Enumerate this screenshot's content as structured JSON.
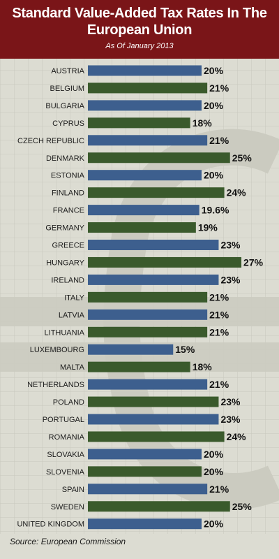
{
  "header": {
    "title": "Standard Value-Added Tax Rates In The European Union",
    "subtitle": "As Of January 2013"
  },
  "footer": {
    "source": "Source: European Commission"
  },
  "colors": {
    "header_bg": "#7a1518",
    "bar_blue": "#3d5f8e",
    "bar_green": "#3a5a2c",
    "background": "#dcdcd2"
  },
  "chart_data": {
    "type": "bar",
    "orientation": "horizontal",
    "title": "Standard Value-Added Tax Rates In The European Union",
    "subtitle": "As Of January 2013",
    "categories": [
      "AUSTRIA",
      "BELGIUM",
      "BULGARIA",
      "CYPRUS",
      "CZECH REPUBLIC",
      "DENMARK",
      "ESTONIA",
      "FINLAND",
      "FRANCE",
      "GERMANY",
      "GREECE",
      "HUNGARY",
      "IRELAND",
      "ITALY",
      "LATVIA",
      "LITHUANIA",
      "LUXEMBOURG",
      "MALTA",
      "NETHERLANDS",
      "POLAND",
      "PORTUGAL",
      "ROMANIA",
      "SLOVAKIA",
      "SLOVENIA",
      "SPAIN",
      "SWEDEN",
      "UNITED KINGDOM"
    ],
    "values": [
      20,
      21,
      20,
      18,
      21,
      25,
      20,
      24,
      19.6,
      19,
      23,
      27,
      23,
      21,
      21,
      21,
      15,
      18,
      21,
      23,
      23,
      24,
      20,
      20,
      21,
      25,
      20
    ],
    "value_labels": [
      "20%",
      "21%",
      "20%",
      "18%",
      "21%",
      "25%",
      "20%",
      "24%",
      "19.6%",
      "19%",
      "23%",
      "27%",
      "23%",
      "21%",
      "21%",
      "21%",
      "15%",
      "18%",
      "21%",
      "23%",
      "23%",
      "24%",
      "20%",
      "20%",
      "21%",
      "25%",
      "20%"
    ],
    "bar_colors": [
      "blue",
      "green",
      "blue",
      "green",
      "blue",
      "green",
      "blue",
      "green",
      "blue",
      "green",
      "blue",
      "green",
      "blue",
      "green",
      "blue",
      "green",
      "blue",
      "green",
      "blue",
      "green",
      "blue",
      "green",
      "blue",
      "green",
      "blue",
      "green",
      "blue"
    ],
    "unit": "%",
    "xlim": [
      0,
      27
    ],
    "grid": true,
    "legend": "none",
    "source": "Source: European Commission"
  }
}
